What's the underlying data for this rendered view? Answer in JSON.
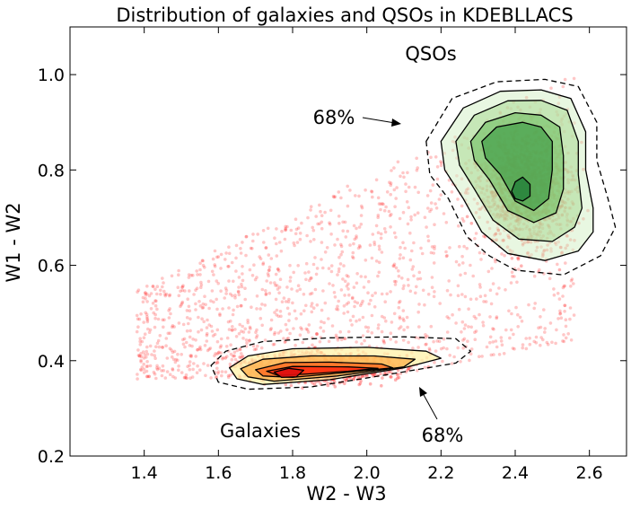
{
  "chart_data": {
    "type": "scatter",
    "title": "Distribution of galaxies and QSOs in KDEBLLACS",
    "xlabel": "W2 - W3",
    "ylabel": "W1 - W2",
    "xlim": [
      1.2,
      2.7
    ],
    "ylim": [
      0.2,
      1.1
    ],
    "xticks": [
      "1.4",
      "1.6",
      "1.8",
      "2.0",
      "2.2",
      "2.4",
      "2.6"
    ],
    "yticks": [
      "0.2",
      "0.4",
      "0.6",
      "0.8",
      "1.0"
    ],
    "annotations": {
      "qso_label": "QSOs",
      "galaxies_label": "Galaxies",
      "qso_contour_label": "68%",
      "galaxy_contour_label": "68%"
    },
    "colors": {
      "scatter_points": "#ff0000",
      "qso_fill": "#2e8b3a",
      "galaxy_fill": "#ff2200",
      "galaxy_outer_fill": "#ffee99"
    },
    "series": [
      {
        "name": "Galaxies",
        "kde_peak": [
          1.78,
          0.37
        ],
        "contour_levels": [
          "68%"
        ],
        "contours": [
          [
            [
              1.58,
              0.39
            ],
            [
              1.62,
              0.42
            ],
            [
              1.72,
              0.44
            ],
            [
              1.9,
              0.448
            ],
            [
              2.1,
              0.45
            ],
            [
              2.24,
              0.446
            ],
            [
              2.28,
              0.42
            ],
            [
              2.24,
              0.395
            ],
            [
              2.05,
              0.37
            ],
            [
              1.85,
              0.345
            ],
            [
              1.68,
              0.34
            ],
            [
              1.6,
              0.355
            ]
          ],
          [
            [
              1.63,
              0.385
            ],
            [
              1.68,
              0.41
            ],
            [
              1.8,
              0.425
            ],
            [
              2.0,
              0.428
            ],
            [
              2.16,
              0.42
            ],
            [
              2.2,
              0.405
            ],
            [
              2.1,
              0.385
            ],
            [
              1.9,
              0.36
            ],
            [
              1.72,
              0.35
            ],
            [
              1.65,
              0.362
            ]
          ],
          [
            [
              1.66,
              0.383
            ],
            [
              1.72,
              0.403
            ],
            [
              1.85,
              0.41
            ],
            [
              2.02,
              0.41
            ],
            [
              2.13,
              0.403
            ],
            [
              2.1,
              0.387
            ],
            [
              1.92,
              0.368
            ],
            [
              1.75,
              0.357
            ],
            [
              1.68,
              0.366
            ]
          ],
          [
            [
              1.7,
              0.381
            ],
            [
              1.78,
              0.396
            ],
            [
              1.9,
              0.397
            ],
            [
              2.04,
              0.393
            ],
            [
              2.07,
              0.385
            ],
            [
              1.94,
              0.375
            ],
            [
              1.8,
              0.365
            ],
            [
              1.72,
              0.368
            ]
          ],
          [
            [
              1.73,
              0.378
            ],
            [
              1.8,
              0.388
            ],
            [
              1.95,
              0.387
            ],
            [
              2.03,
              0.384
            ],
            [
              1.95,
              0.378
            ],
            [
              1.84,
              0.372
            ],
            [
              1.76,
              0.369
            ]
          ],
          [
            [
              1.75,
              0.376
            ],
            [
              1.79,
              0.384
            ],
            [
              1.83,
              0.38
            ],
            [
              1.81,
              0.366
            ],
            [
              1.77,
              0.365
            ]
          ]
        ]
      },
      {
        "name": "QSOs",
        "kde_peak": [
          2.41,
          0.76
        ],
        "contour_levels": [
          "68%"
        ],
        "contours": [
          [
            [
              2.16,
              0.86
            ],
            [
              2.23,
              0.95
            ],
            [
              2.35,
              0.985
            ],
            [
              2.48,
              0.99
            ],
            [
              2.57,
              0.975
            ],
            [
              2.62,
              0.9
            ],
            [
              2.62,
              0.82
            ],
            [
              2.65,
              0.74
            ],
            [
              2.67,
              0.68
            ],
            [
              2.63,
              0.62
            ],
            [
              2.53,
              0.58
            ],
            [
              2.4,
              0.59
            ],
            [
              2.33,
              0.62
            ],
            [
              2.27,
              0.66
            ],
            [
              2.22,
              0.74
            ],
            [
              2.17,
              0.79
            ]
          ],
          [
            [
              2.2,
              0.86
            ],
            [
              2.26,
              0.93
            ],
            [
              2.36,
              0.965
            ],
            [
              2.47,
              0.968
            ],
            [
              2.55,
              0.95
            ],
            [
              2.59,
              0.88
            ],
            [
              2.59,
              0.8
            ],
            [
              2.61,
              0.72
            ],
            [
              2.61,
              0.67
            ],
            [
              2.57,
              0.63
            ],
            [
              2.48,
              0.61
            ],
            [
              2.38,
              0.625
            ],
            [
              2.31,
              0.67
            ],
            [
              2.26,
              0.74
            ],
            [
              2.21,
              0.8
            ]
          ],
          [
            [
              2.24,
              0.86
            ],
            [
              2.29,
              0.915
            ],
            [
              2.38,
              0.945
            ],
            [
              2.47,
              0.946
            ],
            [
              2.54,
              0.925
            ],
            [
              2.57,
              0.86
            ],
            [
              2.57,
              0.79
            ],
            [
              2.58,
              0.72
            ],
            [
              2.56,
              0.68
            ],
            [
              2.5,
              0.65
            ],
            [
              2.41,
              0.655
            ],
            [
              2.34,
              0.695
            ],
            [
              2.29,
              0.76
            ],
            [
              2.25,
              0.81
            ]
          ],
          [
            [
              2.28,
              0.86
            ],
            [
              2.32,
              0.9
            ],
            [
              2.4,
              0.92
            ],
            [
              2.47,
              0.915
            ],
            [
              2.52,
              0.89
            ],
            [
              2.53,
              0.83
            ],
            [
              2.53,
              0.76
            ],
            [
              2.51,
              0.71
            ],
            [
              2.45,
              0.69
            ],
            [
              2.38,
              0.715
            ],
            [
              2.33,
              0.78
            ],
            [
              2.29,
              0.82
            ]
          ],
          [
            [
              2.31,
              0.86
            ],
            [
              2.35,
              0.89
            ],
            [
              2.42,
              0.9
            ],
            [
              2.47,
              0.89
            ],
            [
              2.5,
              0.86
            ],
            [
              2.5,
              0.8
            ],
            [
              2.49,
              0.74
            ],
            [
              2.45,
              0.715
            ],
            [
              2.4,
              0.735
            ],
            [
              2.36,
              0.79
            ],
            [
              2.32,
              0.825
            ]
          ],
          [
            [
              2.39,
              0.755
            ],
            [
              2.4,
              0.775
            ],
            [
              2.42,
              0.785
            ],
            [
              2.44,
              0.77
            ],
            [
              2.44,
              0.745
            ],
            [
              2.42,
              0.735
            ],
            [
              2.4,
              0.74
            ]
          ]
        ]
      }
    ]
  }
}
